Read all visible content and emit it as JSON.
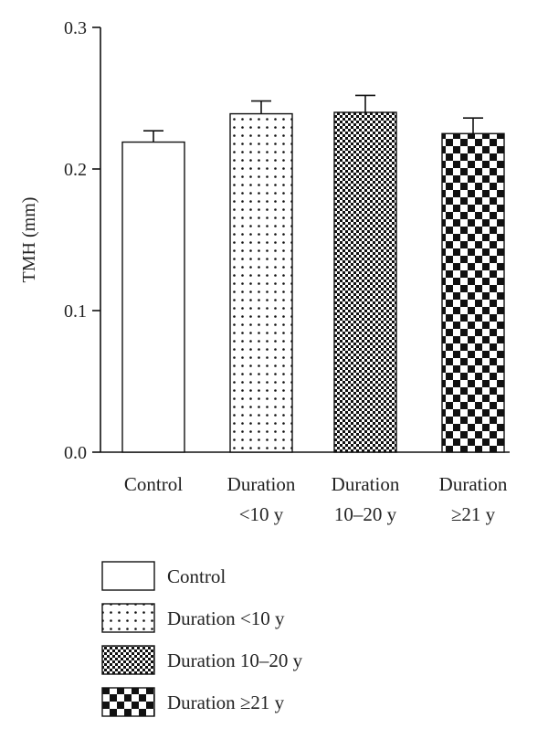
{
  "chart_data": {
    "type": "bar",
    "title": "",
    "xlabel": "",
    "ylabel": "TMH (mm)",
    "ylim": [
      0.0,
      0.3
    ],
    "yticks": [
      "0.0",
      "0.1",
      "0.2",
      "0.3"
    ],
    "grid": false,
    "legend_position": "bottom-left",
    "categories": [
      {
        "id": "control",
        "label_lines": [
          "Control"
        ],
        "legend": "Control",
        "pattern": "none",
        "value": 0.219,
        "error": 0.008
      },
      {
        "id": "lt10",
        "label_lines": [
          "Duration",
          "<10 y"
        ],
        "legend": "Duration <10 y",
        "pattern": "dots",
        "value": 0.239,
        "error": 0.009
      },
      {
        "id": "10to20",
        "label_lines": [
          "Duration",
          "10–20 y"
        ],
        "legend": "Duration 10–20 y",
        "pattern": "fine-checker",
        "value": 0.24,
        "error": 0.012
      },
      {
        "id": "ge21",
        "label_lines": [
          "Duration",
          "≥21 y"
        ],
        "legend": "Duration ≥21 y",
        "pattern": "coarse-checker",
        "value": 0.225,
        "error": 0.011
      }
    ],
    "colors": {
      "ink": "#111111",
      "fill": "#ffffff"
    }
  }
}
